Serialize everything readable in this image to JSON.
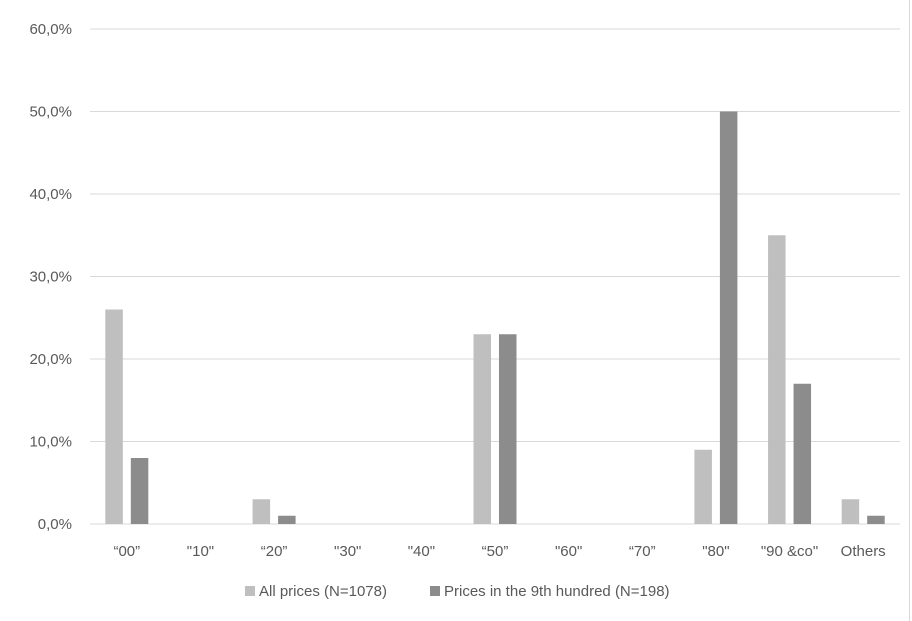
{
  "chart_data": {
    "type": "bar",
    "categories": [
      "“00”",
      "\"10\"",
      "“20”",
      "\"30\"",
      "\"40\"",
      "“50”",
      "\"60\"",
      "“70”",
      "\"80\"",
      "\"90 &co\"",
      "Others"
    ],
    "series": [
      {
        "name": "All prices (N=1078)",
        "color": "#bfbfbf",
        "values": [
          26,
          0,
          3,
          0,
          0,
          23,
          0,
          0,
          9,
          35,
          3
        ]
      },
      {
        "name": "Prices in the 9th hundred (N=198)",
        "color": "#8c8c8c",
        "values": [
          8,
          0,
          1,
          0,
          0,
          23,
          0,
          0,
          50,
          17,
          1
        ]
      }
    ],
    "ylim": [
      0,
      60
    ],
    "yticks": [
      0,
      10,
      20,
      30,
      40,
      50,
      60
    ],
    "ytick_labels": [
      "0,0%",
      "10,0%",
      "20,0%",
      "30,0%",
      "40,0%",
      "50,0%",
      "60,0%"
    ],
    "grid": true,
    "legend_position": "bottom",
    "title": "",
    "xlabel": "",
    "ylabel": ""
  }
}
